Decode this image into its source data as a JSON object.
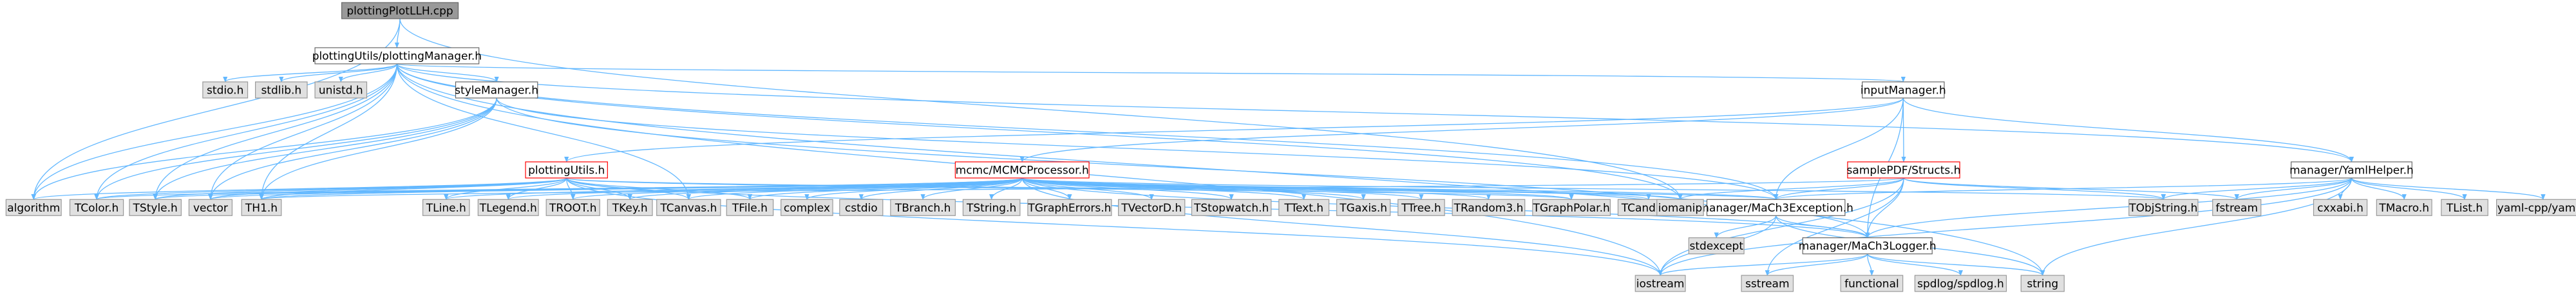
{
  "title": "plottingPlotLLH.cpp include dependency graph",
  "colors": {
    "edge": "#63b8ff",
    "root_fill": "#999999",
    "root_border": "#666666",
    "internal_fill": "#ffffff",
    "internal_border": "#666666",
    "missing_border": "#ff0000",
    "external_fill": "#e0e0e0",
    "external_border": "#999999"
  },
  "nodes": [
    {
      "id": "root",
      "label": "plottingPlotLLH.cpp",
      "kind": "root"
    },
    {
      "id": "pm",
      "label": "plottingUtils/plottingManager.h",
      "kind": "internal"
    },
    {
      "id": "sm",
      "label": "styleManager.h",
      "kind": "internal"
    },
    {
      "id": "im",
      "label": "inputManager.h",
      "kind": "internal"
    },
    {
      "id": "pu",
      "label": "plottingUtils.h",
      "kind": "missing"
    },
    {
      "id": "mcmc",
      "label": "mcmc/MCMCProcessor.h",
      "kind": "missing"
    },
    {
      "id": "spdf",
      "label": "samplePDF/Structs.h",
      "kind": "missing"
    },
    {
      "id": "yaml",
      "label": "manager/YamlHelper.h",
      "kind": "internal"
    },
    {
      "id": "exc",
      "label": "manager/MaCh3Exception.h",
      "kind": "internal"
    },
    {
      "id": "log",
      "label": "manager/MaCh3Logger.h",
      "kind": "internal"
    },
    {
      "id": "stdio",
      "label": "stdio.h",
      "kind": "external"
    },
    {
      "id": "stdlib",
      "label": "stdlib.h",
      "kind": "external"
    },
    {
      "id": "unistd",
      "label": "unistd.h",
      "kind": "external"
    },
    {
      "id": "algorithm",
      "label": "algorithm",
      "kind": "external"
    },
    {
      "id": "tcolor",
      "label": "TColor.h",
      "kind": "external"
    },
    {
      "id": "tstyle",
      "label": "TStyle.h",
      "kind": "external"
    },
    {
      "id": "vector",
      "label": "vector",
      "kind": "external"
    },
    {
      "id": "th1",
      "label": "TH1.h",
      "kind": "external"
    },
    {
      "id": "tline",
      "label": "TLine.h",
      "kind": "external"
    },
    {
      "id": "tlegend",
      "label": "TLegend.h",
      "kind": "external"
    },
    {
      "id": "troot",
      "label": "TROOT.h",
      "kind": "external"
    },
    {
      "id": "tkey",
      "label": "TKey.h",
      "kind": "external"
    },
    {
      "id": "tcanvas",
      "label": "TCanvas.h",
      "kind": "external"
    },
    {
      "id": "tfile",
      "label": "TFile.h",
      "kind": "external"
    },
    {
      "id": "complex",
      "label": "complex",
      "kind": "external"
    },
    {
      "id": "cstdio",
      "label": "cstdio",
      "kind": "external"
    },
    {
      "id": "tbranch",
      "label": "TBranch.h",
      "kind": "external"
    },
    {
      "id": "tstring",
      "label": "TString.h",
      "kind": "external"
    },
    {
      "id": "tgraperr",
      "label": "TGraphErrors.h",
      "kind": "external"
    },
    {
      "id": "tvectord",
      "label": "TVectorD.h",
      "kind": "external"
    },
    {
      "id": "tstopwatch",
      "label": "TStopwatch.h",
      "kind": "external"
    },
    {
      "id": "ttext",
      "label": "TText.h",
      "kind": "external"
    },
    {
      "id": "tgaxis",
      "label": "TGaxis.h",
      "kind": "external"
    },
    {
      "id": "ttree",
      "label": "TTree.h",
      "kind": "external"
    },
    {
      "id": "trandom3",
      "label": "TRandom3.h",
      "kind": "external"
    },
    {
      "id": "tgraphpolar",
      "label": "TGraphPolar.h",
      "kind": "external"
    },
    {
      "id": "tcandle",
      "label": "TCandle.h",
      "kind": "external"
    },
    {
      "id": "iomanip",
      "label": "iomanip",
      "kind": "external"
    },
    {
      "id": "tobjstring",
      "label": "TObjString.h",
      "kind": "external"
    },
    {
      "id": "fstream",
      "label": "fstream",
      "kind": "external"
    },
    {
      "id": "cxxabi",
      "label": "cxxabi.h",
      "kind": "external"
    },
    {
      "id": "tmacro",
      "label": "TMacro.h",
      "kind": "external"
    },
    {
      "id": "tlist",
      "label": "TList.h",
      "kind": "external"
    },
    {
      "id": "yamlcpp",
      "label": "yaml-cpp/yaml.h",
      "kind": "external"
    },
    {
      "id": "stdexcept",
      "label": "stdexcept",
      "kind": "external"
    },
    {
      "id": "iostream",
      "label": "iostream",
      "kind": "external"
    },
    {
      "id": "sstream",
      "label": "sstream",
      "kind": "external"
    },
    {
      "id": "functional",
      "label": "functional",
      "kind": "external"
    },
    {
      "id": "spdlog",
      "label": "spdlog/spdlog.h",
      "kind": "external"
    },
    {
      "id": "string",
      "label": "string",
      "kind": "external"
    }
  ],
  "edges": [
    [
      "root",
      "pm"
    ],
    [
      "root",
      "algorithm"
    ],
    [
      "root",
      "iomanip"
    ],
    [
      "pm",
      "stdio"
    ],
    [
      "pm",
      "stdlib"
    ],
    [
      "pm",
      "unistd"
    ],
    [
      "pm",
      "algorithm"
    ],
    [
      "pm",
      "tcolor"
    ],
    [
      "pm",
      "tstyle"
    ],
    [
      "pm",
      "vector"
    ],
    [
      "pm",
      "th1"
    ],
    [
      "pm",
      "tcanvas"
    ],
    [
      "pm",
      "sm"
    ],
    [
      "pm",
      "im"
    ],
    [
      "pm",
      "yaml"
    ],
    [
      "pm",
      "exc"
    ],
    [
      "pm",
      "iostream"
    ],
    [
      "pm",
      "string"
    ],
    [
      "pm",
      "iomanip"
    ],
    [
      "sm",
      "tstyle"
    ],
    [
      "sm",
      "tcolor"
    ],
    [
      "sm",
      "vector"
    ],
    [
      "sm",
      "th1"
    ],
    [
      "sm",
      "algorithm"
    ],
    [
      "sm",
      "log"
    ],
    [
      "sm",
      "exc"
    ],
    [
      "im",
      "mcmc"
    ],
    [
      "im",
      "spdf"
    ],
    [
      "im",
      "yaml"
    ],
    [
      "im",
      "exc"
    ],
    [
      "im",
      "log"
    ],
    [
      "im",
      "pu"
    ],
    [
      "pu",
      "algorithm"
    ],
    [
      "pu",
      "tcolor"
    ],
    [
      "pu",
      "tstyle"
    ],
    [
      "pu",
      "vector"
    ],
    [
      "pu",
      "th1"
    ],
    [
      "pu",
      "tline"
    ],
    [
      "pu",
      "tlegend"
    ],
    [
      "pu",
      "troot"
    ],
    [
      "pu",
      "tkey"
    ],
    [
      "pu",
      "tcanvas"
    ],
    [
      "pu",
      "tfile"
    ],
    [
      "pu",
      "tgraphpolar"
    ],
    [
      "pu",
      "exc"
    ],
    [
      "pu",
      "log"
    ],
    [
      "pu",
      "iostream"
    ],
    [
      "mcmc",
      "complex"
    ],
    [
      "mcmc",
      "cstdio"
    ],
    [
      "mcmc",
      "vector"
    ],
    [
      "mcmc",
      "iostream"
    ],
    [
      "mcmc",
      "tbranch"
    ],
    [
      "mcmc",
      "tstring"
    ],
    [
      "mcmc",
      "tgraperr"
    ],
    [
      "mcmc",
      "tvectord"
    ],
    [
      "mcmc",
      "tstopwatch"
    ],
    [
      "mcmc",
      "ttext"
    ],
    [
      "mcmc",
      "tgaxis"
    ],
    [
      "mcmc",
      "ttree"
    ],
    [
      "mcmc",
      "trandom3"
    ],
    [
      "mcmc",
      "tgraphpolar"
    ],
    [
      "mcmc",
      "tcandle"
    ],
    [
      "mcmc",
      "iomanip"
    ],
    [
      "mcmc",
      "tobjstring"
    ],
    [
      "mcmc",
      "tline"
    ],
    [
      "mcmc",
      "tlegend"
    ],
    [
      "mcmc",
      "troot"
    ],
    [
      "mcmc",
      "tkey"
    ],
    [
      "mcmc",
      "tcanvas"
    ],
    [
      "mcmc",
      "tfile"
    ],
    [
      "mcmc",
      "th1"
    ],
    [
      "mcmc",
      "tstyle"
    ],
    [
      "mcmc",
      "tcolor"
    ],
    [
      "mcmc",
      "exc"
    ],
    [
      "mcmc",
      "log"
    ],
    [
      "spdf",
      "iomanip"
    ],
    [
      "spdf",
      "sstream"
    ],
    [
      "spdf",
      "iostream"
    ],
    [
      "spdf",
      "tobjstring"
    ],
    [
      "spdf",
      "fstream"
    ],
    [
      "spdf",
      "exc"
    ],
    [
      "spdf",
      "log"
    ],
    [
      "spdf",
      "th1"
    ],
    [
      "yaml",
      "iostream"
    ],
    [
      "yaml",
      "fstream"
    ],
    [
      "yaml",
      "tobjstring"
    ],
    [
      "yaml",
      "cxxabi"
    ],
    [
      "yaml",
      "tmacro"
    ],
    [
      "yaml",
      "tlist"
    ],
    [
      "yaml",
      "yamlcpp"
    ],
    [
      "yaml",
      "exc"
    ],
    [
      "yaml",
      "log"
    ],
    [
      "yaml",
      "string"
    ],
    [
      "exc",
      "stdexcept"
    ],
    [
      "exc",
      "log"
    ],
    [
      "exc",
      "iostream"
    ],
    [
      "exc",
      "string"
    ],
    [
      "log",
      "iostream"
    ],
    [
      "log",
      "sstream"
    ],
    [
      "log",
      "functional"
    ],
    [
      "log",
      "spdlog"
    ],
    [
      "log",
      "string"
    ]
  ]
}
